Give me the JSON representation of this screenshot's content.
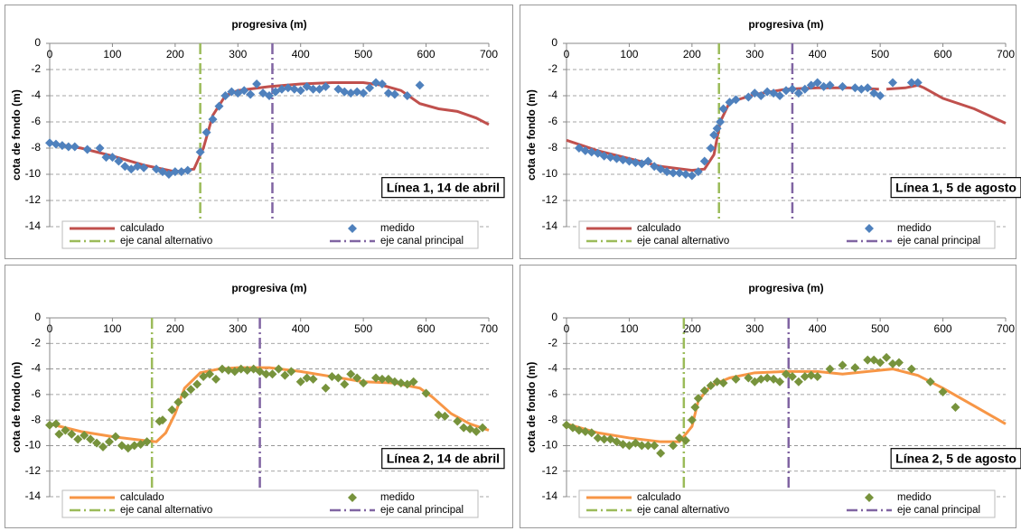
{
  "chart_data": [
    {
      "type": "line",
      "title": "progresiva (m)",
      "y_label": "cota de fondo (m)",
      "annotation": "Línea 1, 14 de abril",
      "xlim": [
        0,
        700
      ],
      "xticks": [
        0,
        100,
        200,
        300,
        400,
        500,
        600,
        700
      ],
      "ylim": [
        -14,
        0
      ],
      "yticks": [
        0,
        -2,
        -4,
        -6,
        -8,
        -10,
        -12,
        -14
      ],
      "grid": true,
      "series": [
        {
          "name": "calculado",
          "color": "#c0504d",
          "style": "line",
          "x": [
            0,
            50,
            100,
            150,
            200,
            230,
            245,
            260,
            280,
            300,
            350,
            400,
            450,
            500,
            530,
            560,
            590,
            620,
            650,
            680,
            700
          ],
          "values": [
            -7.6,
            -8.0,
            -8.6,
            -9.3,
            -9.8,
            -9.6,
            -8.0,
            -5.5,
            -4.0,
            -3.6,
            -3.3,
            -3.1,
            -3.0,
            -3.0,
            -3.2,
            -3.6,
            -4.6,
            -5.0,
            -5.2,
            -5.7,
            -6.2
          ]
        },
        {
          "name": "medido",
          "color": "#4f81bd",
          "style": "marker",
          "x": [
            0,
            10,
            20,
            30,
            40,
            60,
            80,
            90,
            100,
            110,
            120,
            130,
            140,
            150,
            170,
            180,
            190,
            200,
            210,
            220,
            240,
            250,
            260,
            270,
            280,
            290,
            300,
            310,
            320,
            330,
            340,
            350,
            360,
            370,
            380,
            390,
            400,
            410,
            420,
            430,
            440,
            460,
            470,
            480,
            490,
            500,
            510,
            520,
            530,
            540,
            550,
            570,
            590
          ],
          "values": [
            -7.6,
            -7.7,
            -7.8,
            -7.9,
            -7.9,
            -8.1,
            -8.0,
            -8.7,
            -8.7,
            -9.0,
            -9.4,
            -9.6,
            -9.4,
            -9.5,
            -9.6,
            -9.8,
            -10.0,
            -9.8,
            -9.8,
            -9.7,
            -8.3,
            -6.8,
            -5.8,
            -4.8,
            -4.0,
            -3.7,
            -3.8,
            -3.6,
            -3.9,
            -3.1,
            -3.8,
            -4.0,
            -3.7,
            -3.5,
            -3.4,
            -3.5,
            -3.6,
            -3.3,
            -3.5,
            -3.5,
            -3.3,
            -3.5,
            -3.7,
            -3.8,
            -3.7,
            -3.8,
            -3.4,
            -3.0,
            -3.1,
            -3.8,
            -3.9,
            -4.0,
            -3.2
          ]
        }
      ],
      "vlines": [
        {
          "name": "eje canal alternativo",
          "color": "#9bbb59",
          "x": 240
        },
        {
          "name": "eje canal principal",
          "color": "#8064a2",
          "x": 355
        }
      ]
    },
    {
      "type": "line",
      "title": "progresiva (m)",
      "y_label": "cota de fondo (m)",
      "annotation": "Línea 1, 5 de agosto",
      "xlim": [
        0,
        700
      ],
      "xticks": [
        0,
        100,
        200,
        300,
        400,
        500,
        600,
        700
      ],
      "ylim": [
        -14,
        0
      ],
      "yticks": [
        0,
        -2,
        -4,
        -6,
        -8,
        -10,
        -12,
        -14
      ],
      "grid": true,
      "series": [
        {
          "name": "calculado",
          "color": "#c0504d",
          "style": "line",
          "x": [
            0,
            50,
            100,
            150,
            200,
            220,
            235,
            245,
            260,
            300,
            350,
            400,
            450,
            498,
            502,
            510,
            540,
            560,
            570,
            600,
            650,
            700
          ],
          "values": [
            -7.4,
            -8.2,
            -8.8,
            -9.4,
            -9.7,
            -9.6,
            -8.5,
            -6.0,
            -4.5,
            -3.9,
            -3.5,
            -3.4,
            -3.4,
            -3.5,
            null,
            -3.5,
            -3.4,
            -3.2,
            -3.4,
            -4.2,
            -5.0,
            -6.1
          ]
        },
        {
          "name": "medido",
          "color": "#4f81bd",
          "style": "marker",
          "x": [
            20,
            30,
            40,
            50,
            60,
            70,
            80,
            90,
            100,
            110,
            120,
            130,
            140,
            150,
            160,
            170,
            180,
            190,
            200,
            210,
            220,
            230,
            235,
            240,
            245,
            250,
            260,
            270,
            290,
            300,
            310,
            320,
            330,
            340,
            350,
            360,
            370,
            380,
            390,
            400,
            410,
            420,
            440,
            460,
            470,
            480,
            490,
            500,
            520,
            550,
            560
          ],
          "values": [
            -8.0,
            -8.2,
            -8.3,
            -8.4,
            -8.6,
            -8.7,
            -8.8,
            -8.9,
            -9.0,
            -9.1,
            -9.2,
            -9.0,
            -9.4,
            -9.6,
            -9.8,
            -9.9,
            -9.9,
            -10.0,
            -10.1,
            -9.8,
            -9.0,
            -8.0,
            -7.0,
            -6.5,
            -6.0,
            -5.0,
            -4.5,
            -4.3,
            -4.1,
            -3.8,
            -4.0,
            -3.7,
            -3.8,
            -4.0,
            -3.6,
            -3.5,
            -3.8,
            -3.5,
            -3.2,
            -3.0,
            -3.3,
            -3.2,
            -3.3,
            -3.4,
            -3.5,
            -3.4,
            -3.8,
            -4.0,
            -3.0,
            -3.0,
            -3.0
          ]
        }
      ],
      "vlines": [
        {
          "name": "eje canal alternativo",
          "color": "#9bbb59",
          "x": 243
        },
        {
          "name": "eje canal principal",
          "color": "#8064a2",
          "x": 360
        }
      ]
    },
    {
      "type": "line",
      "title": "progresiva (m)",
      "y_label": "cota de fondo (m)",
      "annotation": "Línea 2, 14 de abril",
      "xlim": [
        0,
        700
      ],
      "xticks": [
        0,
        100,
        200,
        300,
        400,
        500,
        600,
        700
      ],
      "ylim": [
        -14,
        0
      ],
      "yticks": [
        0,
        -2,
        -4,
        -6,
        -8,
        -10,
        -12,
        -14
      ],
      "grid": true,
      "series": [
        {
          "name": "calculado",
          "color": "#f79646",
          "style": "line",
          "x": [
            0,
            50,
            100,
            150,
            170,
            185,
            200,
            215,
            240,
            270,
            300,
            350,
            400,
            450,
            500,
            550,
            590,
            610,
            640,
            670,
            700
          ],
          "values": [
            -8.3,
            -8.9,
            -9.3,
            -9.6,
            -9.7,
            -9.0,
            -7.5,
            -5.5,
            -4.3,
            -4.0,
            -3.9,
            -3.9,
            -4.2,
            -4.6,
            -5.0,
            -5.1,
            -5.5,
            -6.2,
            -7.5,
            -8.3,
            -8.8
          ]
        },
        {
          "name": "medido",
          "color": "#77933c",
          "style": "marker",
          "x": [
            0,
            10,
            15,
            25,
            35,
            45,
            55,
            65,
            75,
            85,
            95,
            105,
            115,
            125,
            135,
            145,
            155,
            175,
            180,
            195,
            205,
            215,
            225,
            235,
            245,
            255,
            265,
            275,
            285,
            295,
            305,
            315,
            325,
            335,
            345,
            355,
            365,
            375,
            385,
            400,
            410,
            420,
            440,
            450,
            460,
            470,
            480,
            490,
            500,
            520,
            530,
            540,
            550,
            560,
            570,
            580,
            600,
            620,
            630,
            650,
            660,
            670,
            680,
            690
          ],
          "values": [
            -8.4,
            -8.3,
            -9.1,
            -8.8,
            -9.1,
            -9.5,
            -9.2,
            -9.5,
            -9.8,
            -10.1,
            -9.7,
            -9.3,
            -10.0,
            -10.2,
            -10.0,
            -9.9,
            -9.7,
            -8.1,
            -8.0,
            -7.2,
            -6.6,
            -6.0,
            -5.6,
            -5.2,
            -4.6,
            -4.4,
            -4.8,
            -4.0,
            -4.1,
            -4.2,
            -4.0,
            -4.1,
            -4.0,
            -4.2,
            -4.4,
            -4.4,
            -4.0,
            -4.5,
            -4.2,
            -5.0,
            -4.7,
            -4.8,
            -5.5,
            -4.6,
            -4.7,
            -5.2,
            -4.4,
            -4.7,
            -5.1,
            -4.7,
            -4.8,
            -4.8,
            -5.0,
            -5.1,
            -5.2,
            -5.0,
            -5.9,
            -7.6,
            -7.7,
            -8.1,
            -8.6,
            -8.7,
            -8.9,
            -8.6
          ]
        }
      ],
      "vlines": [
        {
          "name": "eje canal alternativo",
          "color": "#9bbb59",
          "x": 163
        },
        {
          "name": "eje canal principal",
          "color": "#8064a2",
          "x": 335
        }
      ]
    },
    {
      "type": "line",
      "title": "progresiva (m)",
      "y_label": "cota de fondo (m)",
      "annotation": "Línea 2, 5 de agosto",
      "xlim": [
        0,
        700
      ],
      "xticks": [
        0,
        100,
        200,
        300,
        400,
        500,
        600,
        700
      ],
      "ylim": [
        -14,
        0
      ],
      "yticks": [
        0,
        -2,
        -4,
        -6,
        -8,
        -10,
        -12,
        -14
      ],
      "grid": true,
      "series": [
        {
          "name": "calculado",
          "color": "#f79646",
          "style": "line",
          "x": [
            0,
            50,
            100,
            150,
            180,
            200,
            210,
            230,
            260,
            300,
            350,
            400,
            440,
            480,
            520,
            560,
            600,
            650,
            700
          ],
          "values": [
            -8.3,
            -9.0,
            -9.4,
            -9.7,
            -9.7,
            -8.5,
            -6.5,
            -5.3,
            -4.7,
            -4.3,
            -4.2,
            -4.2,
            -4.4,
            -4.2,
            -4.0,
            -4.5,
            -5.5,
            -6.9,
            -8.3
          ]
        },
        {
          "name": "medido",
          "color": "#77933c",
          "style": "marker",
          "x": [
            0,
            10,
            20,
            30,
            40,
            50,
            60,
            70,
            80,
            90,
            100,
            110,
            120,
            130,
            140,
            150,
            170,
            180,
            190,
            200,
            205,
            210,
            220,
            230,
            240,
            250,
            270,
            290,
            300,
            310,
            320,
            330,
            340,
            350,
            360,
            370,
            380,
            390,
            400,
            420,
            440,
            460,
            480,
            490,
            500,
            510,
            520,
            530,
            550,
            580,
            600,
            620
          ],
          "values": [
            -8.4,
            -8.6,
            -8.8,
            -8.9,
            -9.0,
            -9.4,
            -9.5,
            -9.5,
            -9.7,
            -9.9,
            -10.0,
            -9.8,
            -10.0,
            -10.0,
            -10.0,
            -10.6,
            -10.0,
            -9.4,
            -9.6,
            -8.0,
            -7.0,
            -6.3,
            -5.7,
            -5.3,
            -5.0,
            -5.1,
            -4.8,
            -4.7,
            -5.0,
            -4.8,
            -4.7,
            -4.8,
            -5.0,
            -4.4,
            -4.6,
            -5.0,
            -4.6,
            -4.5,
            -4.6,
            -4.0,
            -3.7,
            -3.9,
            -3.3,
            -3.3,
            -3.5,
            -3.1,
            -3.6,
            -3.5,
            -4.0,
            -5.0,
            -5.8,
            -7.0
          ]
        }
      ],
      "vlines": [
        {
          "name": "eje canal alternativo",
          "color": "#9bbb59",
          "x": 187
        },
        {
          "name": "eje canal principal",
          "color": "#8064a2",
          "x": 354
        }
      ]
    }
  ]
}
